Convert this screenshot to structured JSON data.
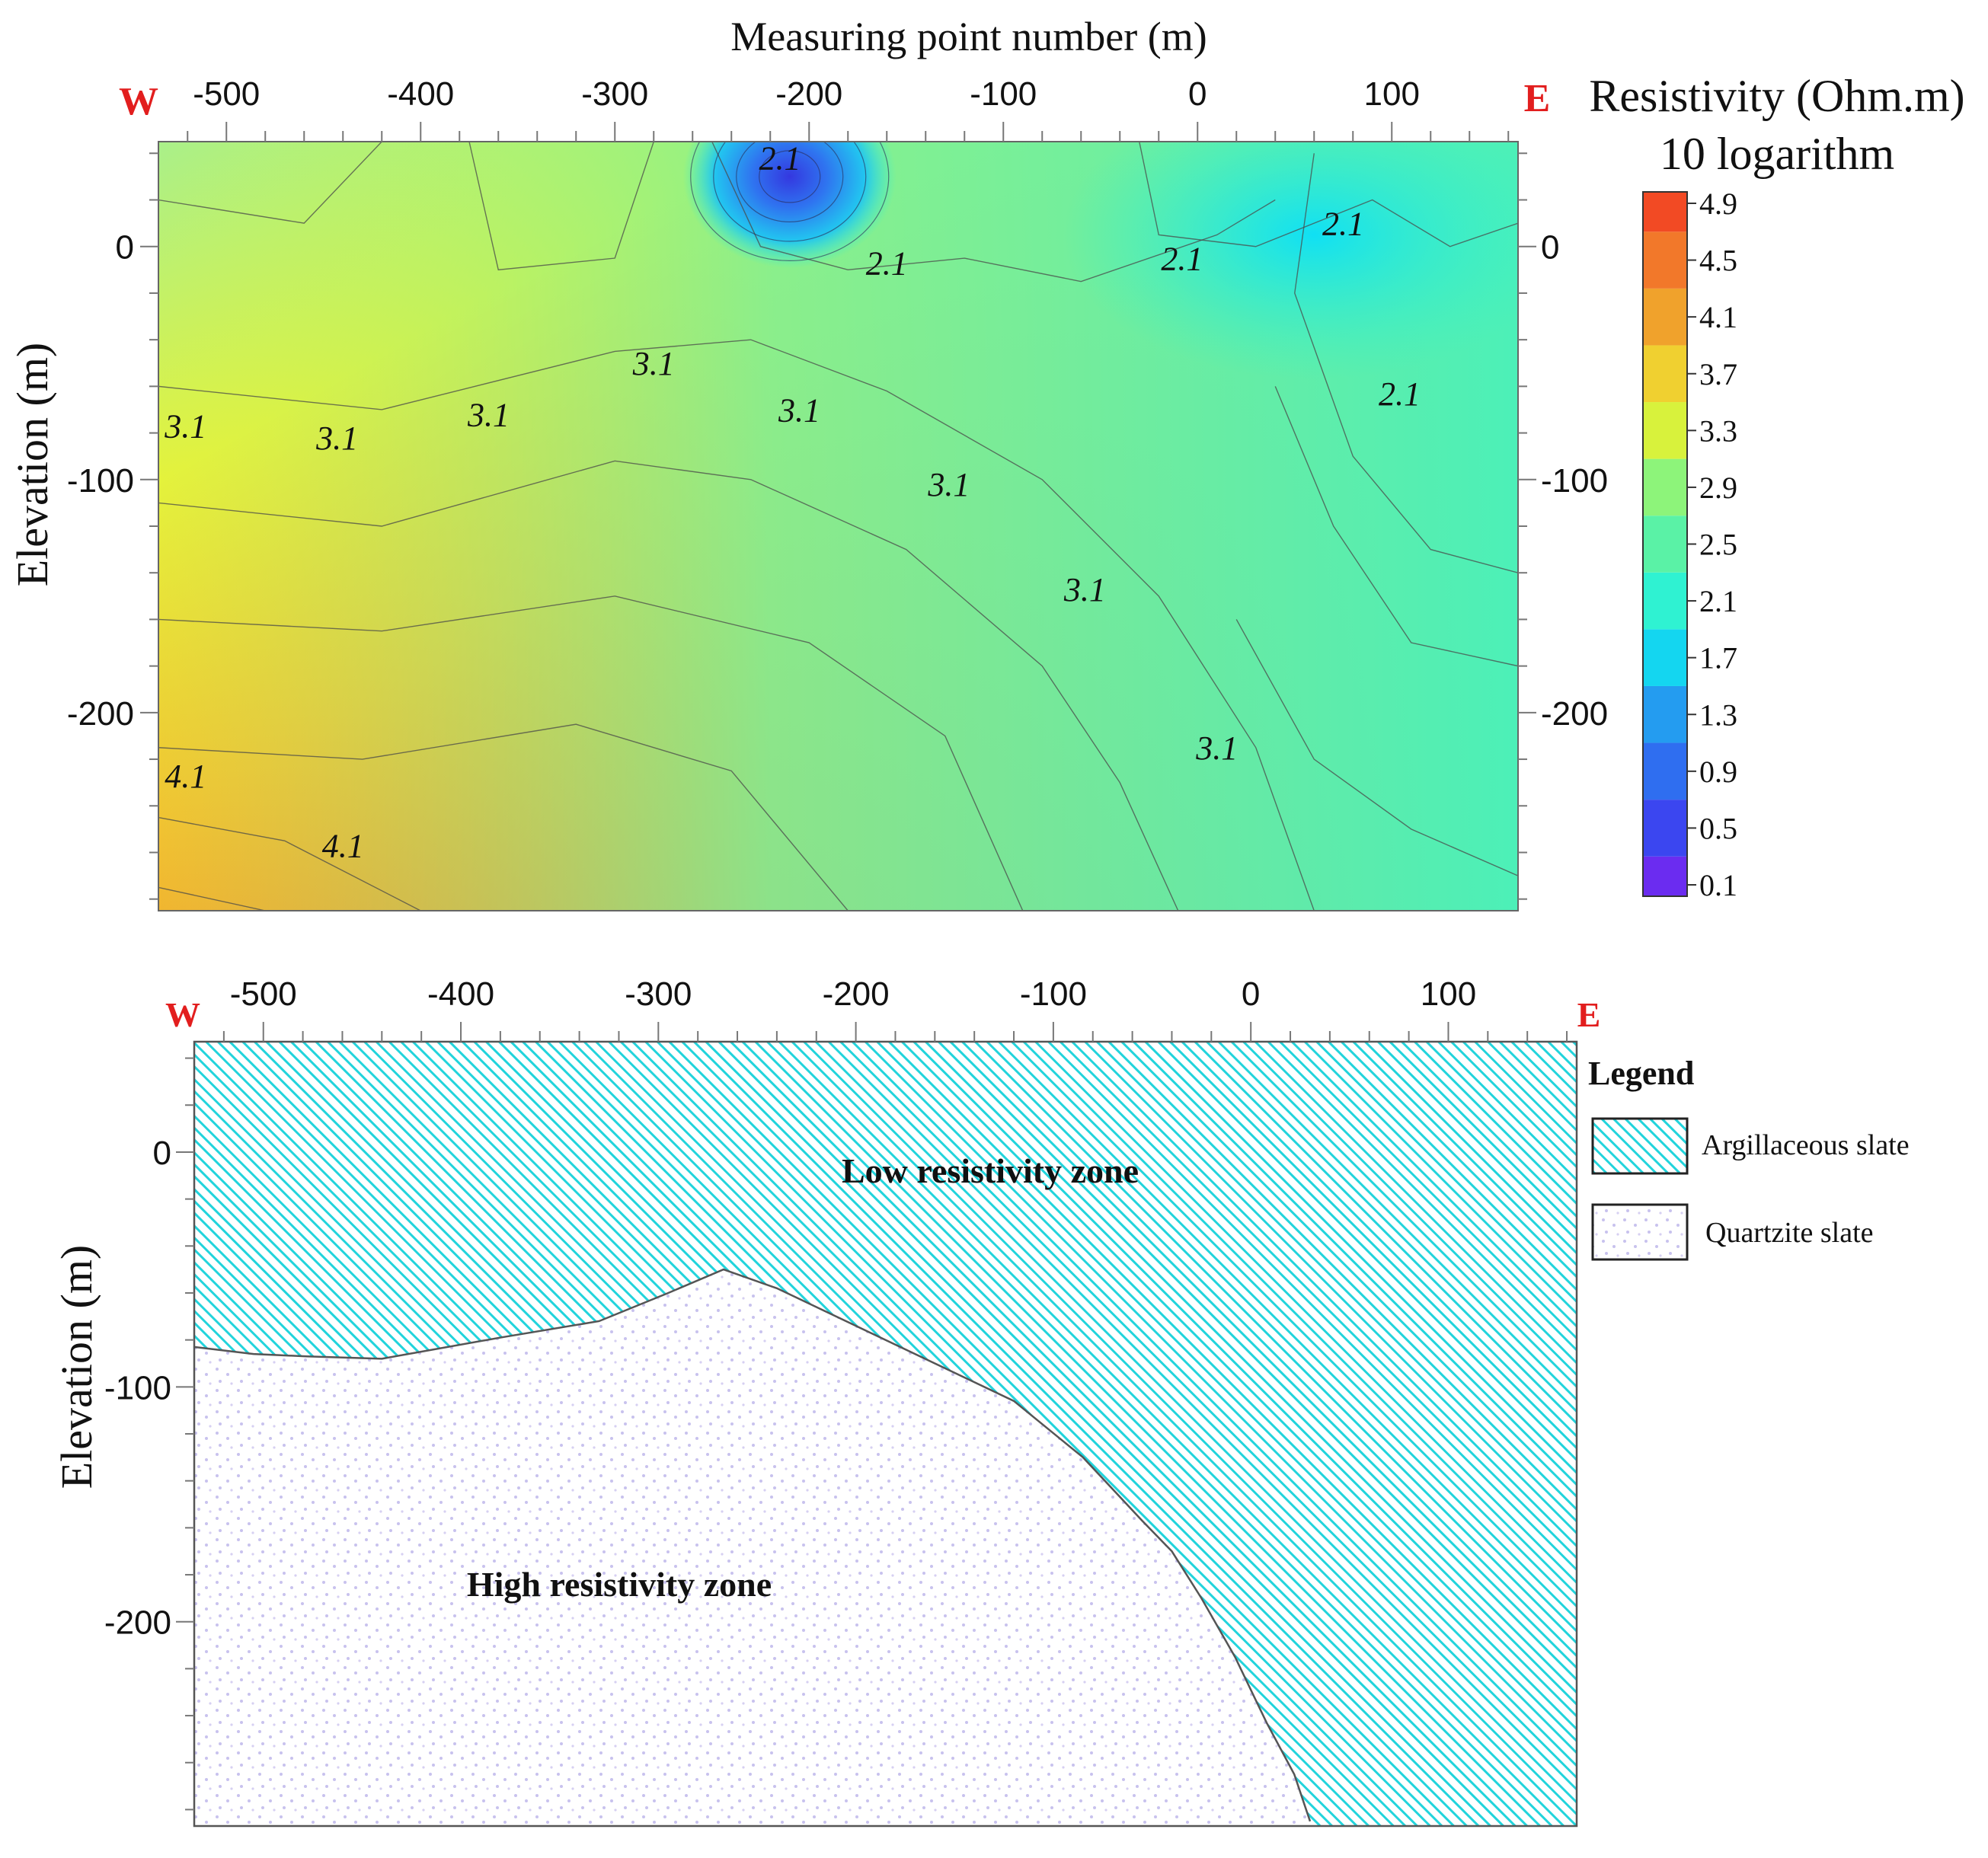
{
  "chart_data": [
    {
      "type": "heatmap",
      "subtype": "filled-contour",
      "title": "Measuring point number (m)",
      "xlabel": "Measuring point number (m)",
      "ylabel": "Elevation (m)",
      "xlim": [
        -535,
        165
      ],
      "ylim": [
        -285,
        45
      ],
      "x_ticks": [
        -500,
        -400,
        -300,
        -200,
        -100,
        0,
        100
      ],
      "y_ticks": [
        0,
        -100,
        -200
      ],
      "x_tick_labels": [
        "-500",
        "-400",
        "-300",
        "-200",
        "-100",
        "0",
        "100"
      ],
      "y_tick_labels": [
        "0",
        "-100",
        "-200"
      ],
      "left_marker": "W",
      "right_marker": "E",
      "colorbar": {
        "title_line1": "Resistivity (Ohm.m)",
        "title_line2": "10 logarithm",
        "levels": [
          0.1,
          0.5,
          0.9,
          1.3,
          1.7,
          2.1,
          2.5,
          2.9,
          3.3,
          3.7,
          4.1,
          4.5,
          4.9
        ],
        "level_labels": [
          "0.1",
          "0.5",
          "0.9",
          "1.3",
          "1.7",
          "2.1",
          "2.5",
          "2.9",
          "3.3",
          "3.7",
          "4.1",
          "4.5",
          "4.9"
        ],
        "colors": [
          "#6b2cf0",
          "#3b46f0",
          "#2f6ef0",
          "#249cf0",
          "#14d6f0",
          "#2ff2d2",
          "#5af2a6",
          "#8df47a",
          "#d8f23c",
          "#f0d030",
          "#f0a22c",
          "#f2782a",
          "#f24a24"
        ]
      },
      "contour_labels": [
        {
          "text": "2.1",
          "x": -215,
          "y": 33
        },
        {
          "text": "2.1",
          "x": -160,
          "y": -12
        },
        {
          "text": "2.1",
          "x": -8,
          "y": -10
        },
        {
          "text": "2.1",
          "x": 75,
          "y": 5
        },
        {
          "text": "2.1",
          "x": 104,
          "y": -68
        },
        {
          "text": "3.1",
          "x": -521,
          "y": -82
        },
        {
          "text": "3.1",
          "x": -443,
          "y": -87
        },
        {
          "text": "3.1",
          "x": -365,
          "y": -77
        },
        {
          "text": "3.1",
          "x": -280,
          "y": -55
        },
        {
          "text": "3.1",
          "x": -205,
          "y": -75
        },
        {
          "text": "3.1",
          "x": -128,
          "y": -107
        },
        {
          "text": "3.1",
          "x": -58,
          "y": -152
        },
        {
          "text": "3.1",
          "x": 10,
          "y": -220
        },
        {
          "text": "4.1",
          "x": -521,
          "y": -232
        },
        {
          "text": "4.1",
          "x": -440,
          "y": -262
        }
      ]
    },
    {
      "type": "geologic-section",
      "xlabel": "",
      "ylabel": "Elevation (m)",
      "xlim": [
        -535,
        165
      ],
      "ylim": [
        -287,
        47
      ],
      "x_ticks": [
        -500,
        -400,
        -300,
        -200,
        -100,
        0,
        100
      ],
      "y_ticks": [
        0,
        -100,
        -200
      ],
      "x_tick_labels": [
        "-500",
        "-400",
        "-300",
        "-200",
        "-100",
        "0",
        "100"
      ],
      "y_tick_labels": [
        "0",
        "-100",
        "-200"
      ],
      "left_marker": "W",
      "right_marker": "E",
      "boundary": [
        {
          "x": -535,
          "y": -83
        },
        {
          "x": -505,
          "y": -86
        },
        {
          "x": -478,
          "y": -87
        },
        {
          "x": -440,
          "y": -88
        },
        {
          "x": -380,
          "y": -79
        },
        {
          "x": -330,
          "y": -72
        },
        {
          "x": -295,
          "y": -60
        },
        {
          "x": -267,
          "y": -50
        },
        {
          "x": -240,
          "y": -58
        },
        {
          "x": -200,
          "y": -74
        },
        {
          "x": -160,
          "y": -90
        },
        {
          "x": -120,
          "y": -106
        },
        {
          "x": -85,
          "y": -130
        },
        {
          "x": -55,
          "y": -157
        },
        {
          "x": -40,
          "y": -170
        },
        {
          "x": -25,
          "y": -190
        },
        {
          "x": -8,
          "y": -215
        },
        {
          "x": 8,
          "y": -243
        },
        {
          "x": 22,
          "y": -265
        },
        {
          "x": 30,
          "y": -285
        }
      ],
      "zones": {
        "upper": "Low resistivity zone",
        "lower": "High resistivity zone"
      },
      "legend": {
        "title": "Legend",
        "items": [
          {
            "label": "Argillaceous slate",
            "fill": "#1fd8e0"
          },
          {
            "label": "Quartzite slate",
            "fill": "#c8c0f0"
          }
        ]
      }
    }
  ]
}
